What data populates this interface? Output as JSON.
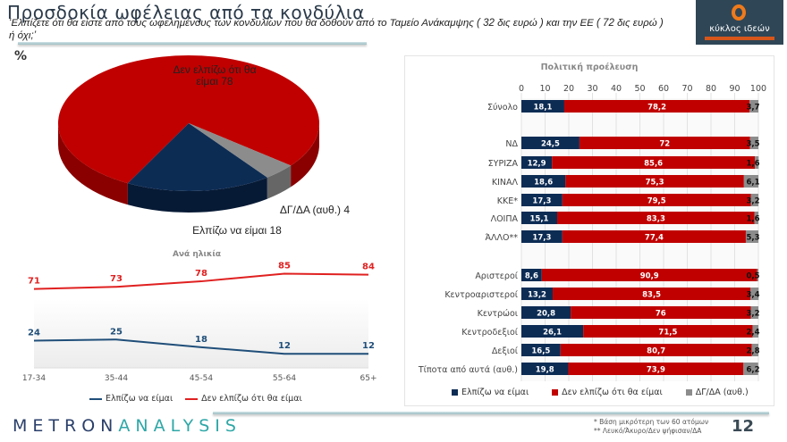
{
  "header": {
    "title": "Προσδοκία ωφέλειας από τα κονδύλια",
    "question": "‘Ελπίζετε ότι θα είστε από τους ωφελημένους των κονδυλίων που θα δοθούν από το  Ταμείο Ανάκαμψης ( 32 δις ευρώ )  και την ΕΕ ( 72 δις ευρώ ) ή όχι;’",
    "logo_text": "κύκλος ιδεών"
  },
  "unit_label": "%",
  "colors": {
    "hope": "#0d2c54",
    "no_hope": "#c00000",
    "dk": "#8c8c8c",
    "line_hope": "#1f4e79",
    "line_no": "#e02020"
  },
  "chart_data": [
    {
      "type": "pie",
      "slices": [
        {
          "label": "Δεν ελπίζω ότι θα είμαι",
          "value": 78
        },
        {
          "label": "Ελπίζω να είμαι",
          "value": 18
        },
        {
          "label": "ΔΓ/ΔΑ (αυθ.)",
          "value": 4
        }
      ],
      "data_labels": [
        "Δεν ελπίζω ότι θα είμαι 78",
        "Ελπίζω να είμαι 18",
        "ΔΓ/ΔΑ (αυθ.) 4"
      ]
    },
    {
      "type": "line",
      "title": "Ανά ηλικία",
      "categories": [
        "17-34",
        "35-44",
        "45-54",
        "55-64",
        "65+"
      ],
      "series": [
        {
          "name": "Ελπίζω να είμαι",
          "values": [
            24,
            25,
            18,
            12,
            12
          ]
        },
        {
          "name": "Δεν ελπίζω ότι θα είμαι",
          "values": [
            71,
            73,
            78,
            85,
            84
          ]
        }
      ],
      "legend": "bottom"
    },
    {
      "type": "bar",
      "orientation": "horizontal-stacked",
      "title": "Πολιτική προέλευση",
      "xlim": [
        0,
        100
      ],
      "xticks": [
        "0",
        "10",
        "20",
        "30",
        "40",
        "50",
        "60",
        "70",
        "80",
        "90",
        "100"
      ],
      "grid": true,
      "legend": "bottom",
      "series_names": [
        "Ελπίζω να είμαι",
        "Δεν ελπίζω ότι θα είμαι",
        "ΔΓ/ΔΑ (αυθ.)"
      ],
      "rows": [
        {
          "label": "Σύνολο",
          "values": [
            "18,1",
            "78,2",
            "3,7"
          ]
        },
        {
          "label": "ΝΔ",
          "values": [
            "24,5",
            "72",
            "3,5"
          ]
        },
        {
          "label": "ΣΥΡΙΖΑ",
          "values": [
            "12,9",
            "85,6",
            "1,6"
          ]
        },
        {
          "label": "ΚΙΝΑΛ",
          "values": [
            "18,6",
            "75,3",
            "6,1"
          ]
        },
        {
          "label": "ΚΚΕ*",
          "values": [
            "17,3",
            "79,5",
            "3,2"
          ]
        },
        {
          "label": "ΛΟΙΠΑ",
          "values": [
            "15,1",
            "83,3",
            "1,6"
          ]
        },
        {
          "label": "ΆΛΛΟ**",
          "values": [
            "17,3",
            "77,4",
            "5,3"
          ]
        },
        {
          "label": "Αριστεροί",
          "values": [
            "8,6",
            "90,9",
            "0,5"
          ]
        },
        {
          "label": "Κεντροαριστεροί",
          "values": [
            "13,2",
            "83,5",
            "3,4"
          ]
        },
        {
          "label": "Κεντρώοι",
          "values": [
            "20,8",
            "76",
            "3,2"
          ]
        },
        {
          "label": "Κεντροδεξιοί",
          "values": [
            "26,1",
            "71,5",
            "2,4"
          ]
        },
        {
          "label": "Δεξιοί",
          "values": [
            "16,5",
            "80,7",
            "2,8"
          ]
        },
        {
          "label": "Τίποτα από αυτά (αυθ.)",
          "values": [
            "19,8",
            "73,9",
            "6,2"
          ]
        }
      ]
    }
  ],
  "footer": {
    "brand": "METRONANALYSIS",
    "note1": "*  Βάση μικρότερη των 60 ατόμων",
    "note2": "** Λευκό/Άκυρο/Δεν ψήφισαν/ΔΑ",
    "page": "12"
  }
}
